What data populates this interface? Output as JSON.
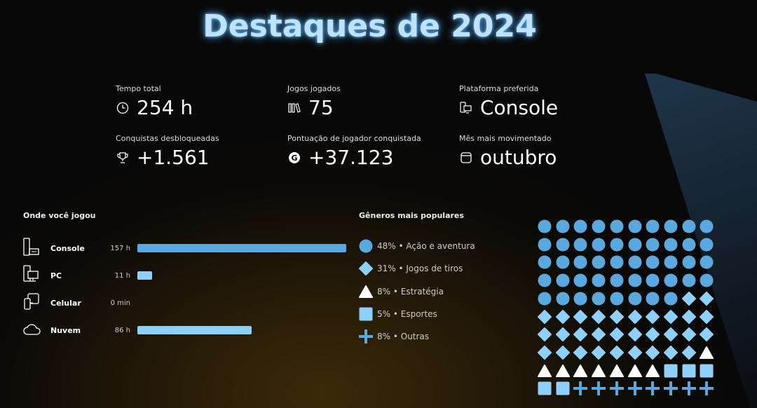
{
  "title": "Destaques de 2024",
  "stats": [
    {
      "label": "Tempo total",
      "value": "254 h",
      "icon": "clock-icon"
    },
    {
      "label": "Jogos jogados",
      "value": "75",
      "icon": "library-icon"
    },
    {
      "label": "Plataforma preferida",
      "value": "Console",
      "icon": "devices-icon"
    },
    {
      "label": "Conquistas desbloqueadas",
      "value": "+1.561",
      "icon": "trophy-icon"
    },
    {
      "label": "Pontuação de jogador conquistada",
      "value": "+37.123",
      "icon": "gamerscore-icon"
    },
    {
      "label": "Mês mais movimentado",
      "value": "outubro",
      "icon": "calendar-icon"
    }
  ],
  "platforms": {
    "title": "Onde você jogou",
    "items": [
      {
        "name": "Console",
        "time": "157 h",
        "hours": 157,
        "color": "#5aa8de"
      },
      {
        "name": "PC",
        "time": "11 h",
        "hours": 11,
        "color": "#8fd0fa"
      },
      {
        "name": "Celular",
        "time": "0 min",
        "hours": 0,
        "color": "#8fd0fa"
      },
      {
        "name": "Nuvem",
        "time": "86 h",
        "hours": 86,
        "color": "#8fd0fa"
      }
    ]
  },
  "genres": {
    "title": "Gêneros mais populares",
    "items": [
      {
        "label": "48% • Ação e aventura",
        "percent": 48,
        "shape": "circle",
        "color": "#5aa8de"
      },
      {
        "label": "31% • Jogos de tiros",
        "percent": 31,
        "shape": "diamond",
        "color": "#8fd0fa"
      },
      {
        "label": "8% • Estratégia",
        "percent": 8,
        "shape": "triangle",
        "color": "#ffffff"
      },
      {
        "label": "5% • Esportes",
        "percent": 5,
        "shape": "square",
        "color": "#8fd0fa"
      },
      {
        "label": "8% • Outras",
        "percent": 8,
        "shape": "plus",
        "color": "#5aa8de"
      }
    ]
  }
}
